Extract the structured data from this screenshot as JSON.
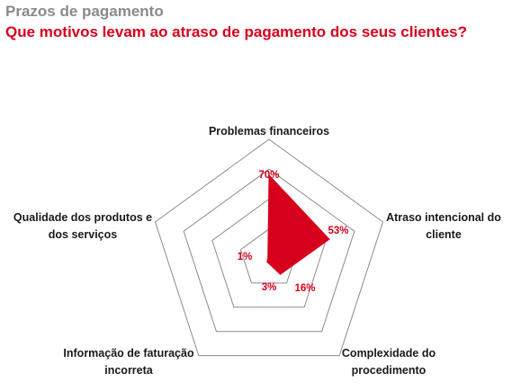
{
  "header": {
    "kicker": "Prazos de pagamento",
    "headline": "Que motivos levam ao atraso de pagamento dos seus clientes?"
  },
  "colors": {
    "accent": "#d6001c",
    "grid": "#8c8c8c",
    "kicker": "#8a8a8a"
  },
  "chart_data": {
    "type": "radar",
    "title": "",
    "axes": [
      {
        "label": [
          "Problemas financeiros"
        ],
        "value": 70,
        "value_label": "70%"
      },
      {
        "label": [
          "Atraso intencional do",
          "cliente"
        ],
        "value": 53,
        "value_label": "53%"
      },
      {
        "label": [
          "Complexidade do",
          "procedimento"
        ],
        "value": 16,
        "value_label": "16%"
      },
      {
        "label": [
          "Informação de faturação",
          "incorreta"
        ],
        "value": 3,
        "value_label": "3%"
      },
      {
        "label": [
          "Qualidade dos produtos e",
          "dos serviços"
        ],
        "value": 1,
        "value_label": "1%"
      }
    ],
    "unit": "%",
    "rmax": 100,
    "rings": 4,
    "series": [
      {
        "values": [
          70,
          53,
          16,
          3,
          1
        ]
      }
    ]
  }
}
